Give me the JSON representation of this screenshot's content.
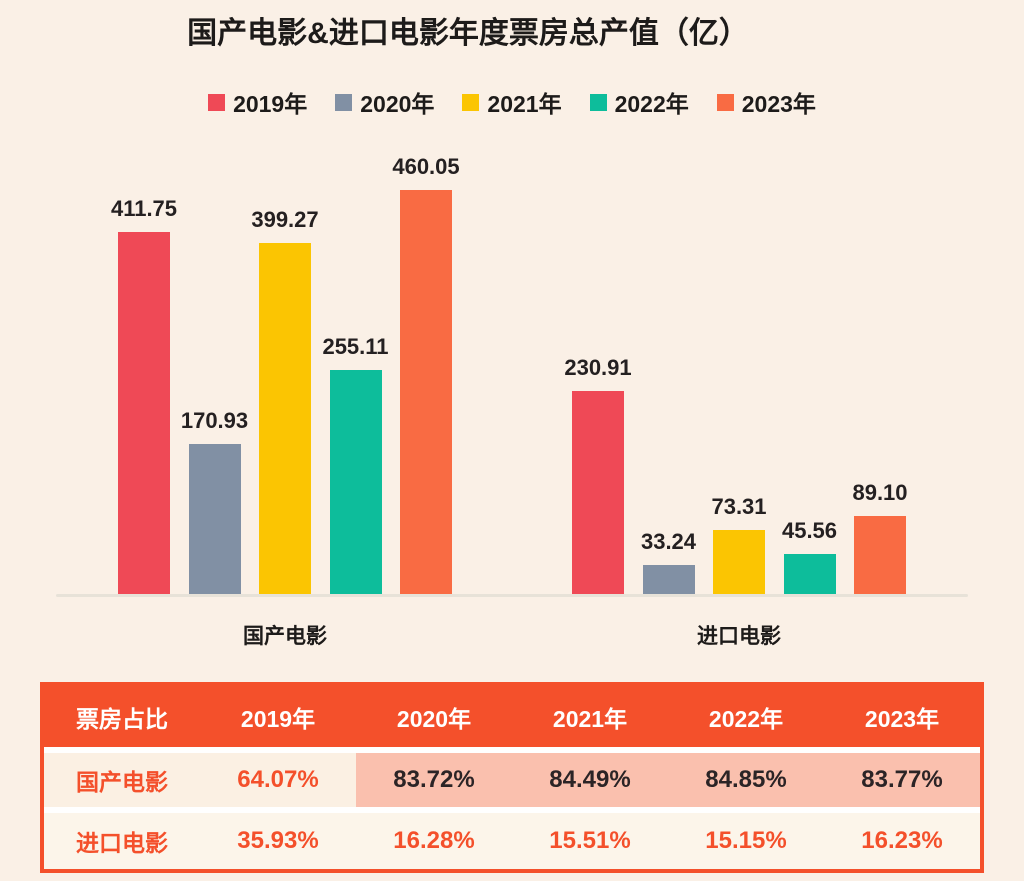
{
  "page": {
    "background": "#FAF0E6"
  },
  "chart_data": {
    "type": "bar",
    "title": "国产电影&进口电影年度票房总产值（亿）",
    "unit": "亿",
    "categories": [
      "国产电影",
      "进口电影"
    ],
    "series": [
      {
        "name": "2019年",
        "color": "#EF4956",
        "values": [
          411.75,
          230.91
        ],
        "labels": [
          "411.75",
          "230.91"
        ]
      },
      {
        "name": "2020年",
        "color": "#8190A4",
        "values": [
          170.93,
          33.24
        ],
        "labels": [
          "170.93",
          "33.24"
        ]
      },
      {
        "name": "2021年",
        "color": "#FBC502",
        "values": [
          399.27,
          73.31
        ],
        "labels": [
          "399.27",
          "73.31"
        ]
      },
      {
        "name": "2022年",
        "color": "#0DBD9B",
        "values": [
          255.11,
          45.56
        ],
        "labels": [
          "255.11",
          "45.56"
        ]
      },
      {
        "name": "2023年",
        "color": "#F96B43",
        "values": [
          460.05,
          89.1
        ],
        "labels": [
          "460.05",
          "89.10"
        ]
      }
    ],
    "ylim": [
      0,
      460.05
    ],
    "legend_position": "top",
    "grid": false,
    "value_labels": true,
    "axis_line_color": "#E7E2D8"
  },
  "table": {
    "header": [
      "票房占比",
      "2019年",
      "2020年",
      "2021年",
      "2022年",
      "2023年"
    ],
    "rows": [
      {
        "label": "国产电影",
        "values": [
          "64.07%",
          "83.72%",
          "84.49%",
          "84.85%",
          "83.77%"
        ],
        "highlighted_cols": [
          1,
          2,
          3,
          4
        ]
      },
      {
        "label": "进口电影",
        "values": [
          "35.93%",
          "16.28%",
          "15.51%",
          "15.15%",
          "16.23%"
        ],
        "highlighted_cols": []
      }
    ],
    "colors": {
      "header_bg": "#F4502B",
      "header_text": "#FFFFFF",
      "border": "#F4502B",
      "separator": "#FFFFFF",
      "row_bg": [
        "#FBF0E3",
        "#FCF5EA"
      ],
      "highlight_bg": "#FAC0AE",
      "accent_text": "#F4502B",
      "dark_text": "#2B2426"
    }
  }
}
